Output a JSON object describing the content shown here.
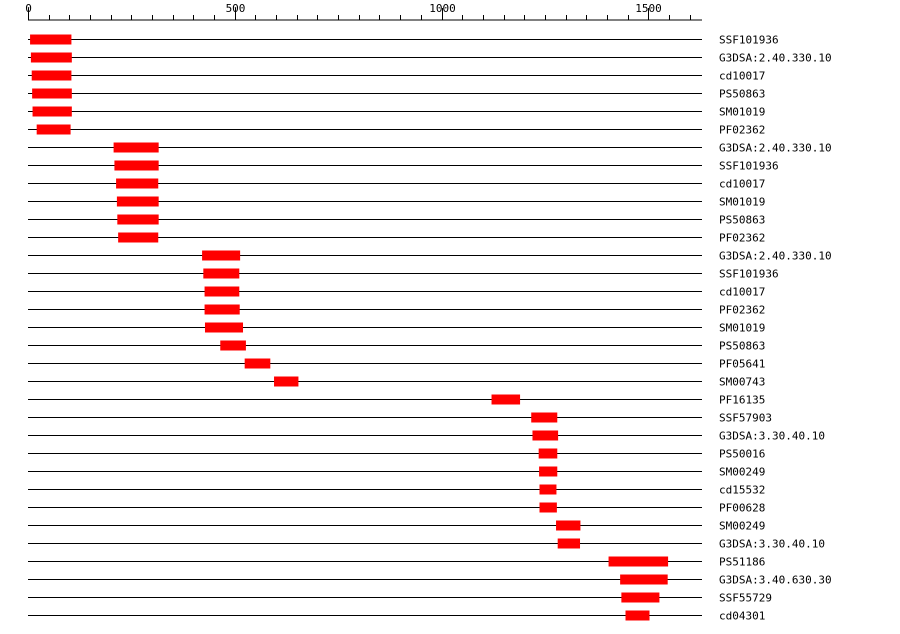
{
  "chart_data": {
    "type": "bar",
    "axis": {
      "min": 0,
      "max": 1600,
      "major_ticks": [
        0,
        500,
        1000,
        1500
      ],
      "major_labels": [
        "0",
        "500",
        "1000",
        "1500"
      ],
      "minor_step": 50
    },
    "bar_color": "#ff0000",
    "line_color": "#000000",
    "rows": [
      {
        "label": "SSF101936",
        "start": 5,
        "end": 105
      },
      {
        "label": "G3DSA:2.40.330.10",
        "start": 7,
        "end": 106
      },
      {
        "label": "cd10017",
        "start": 9,
        "end": 105
      },
      {
        "label": "PS50863",
        "start": 10,
        "end": 106
      },
      {
        "label": "SM01019",
        "start": 11,
        "end": 106
      },
      {
        "label": "PF02362",
        "start": 21,
        "end": 103
      },
      {
        "label": "G3DSA:2.40.330.10",
        "start": 207,
        "end": 316
      },
      {
        "label": "SSF101936",
        "start": 209,
        "end": 316
      },
      {
        "label": "cd10017",
        "start": 213,
        "end": 315
      },
      {
        "label": "SM01019",
        "start": 215,
        "end": 316
      },
      {
        "label": "PS50863",
        "start": 216,
        "end": 316
      },
      {
        "label": "PF02362",
        "start": 218,
        "end": 315
      },
      {
        "label": "G3DSA:2.40.330.10",
        "start": 421,
        "end": 513
      },
      {
        "label": "SSF101936",
        "start": 424,
        "end": 511
      },
      {
        "label": "cd10017",
        "start": 427,
        "end": 511
      },
      {
        "label": "PF02362",
        "start": 427,
        "end": 512
      },
      {
        "label": "SM01019",
        "start": 428,
        "end": 520
      },
      {
        "label": "PS50863",
        "start": 465,
        "end": 527
      },
      {
        "label": "PF05641",
        "start": 524,
        "end": 586
      },
      {
        "label": "SM00743",
        "start": 595,
        "end": 654
      },
      {
        "label": "PF16135",
        "start": 1121,
        "end": 1190
      },
      {
        "label": "SSF57903",
        "start": 1217,
        "end": 1280
      },
      {
        "label": "G3DSA:3.30.40.10",
        "start": 1220,
        "end": 1282
      },
      {
        "label": "PS50016",
        "start": 1235,
        "end": 1280
      },
      {
        "label": "SM00249",
        "start": 1236,
        "end": 1280
      },
      {
        "label": "cd15532",
        "start": 1237,
        "end": 1278
      },
      {
        "label": "PF00628",
        "start": 1237,
        "end": 1279
      },
      {
        "label": "SM00249",
        "start": 1277,
        "end": 1336
      },
      {
        "label": "G3DSA:3.30.40.10",
        "start": 1281,
        "end": 1335
      },
      {
        "label": "PS51186",
        "start": 1404,
        "end": 1548
      },
      {
        "label": "G3DSA:3.40.630.30",
        "start": 1432,
        "end": 1547
      },
      {
        "label": "SSF55729",
        "start": 1435,
        "end": 1527
      },
      {
        "label": "cd04301",
        "start": 1445,
        "end": 1503
      }
    ]
  }
}
